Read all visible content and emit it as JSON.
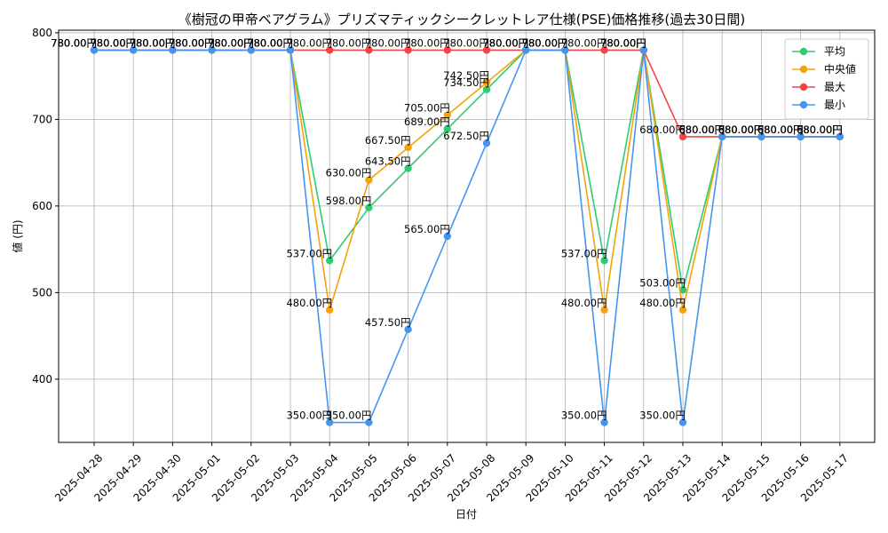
{
  "chart_data": {
    "type": "line",
    "title": "《樹冠の甲帝ベアグラム》プリズマティックシークレットレア仕様(PSE)価格推移(過去30日間)",
    "xlabel": "日付",
    "ylabel": "値 (円)",
    "ylim": [
      327,
      803
    ],
    "yticks": [
      400,
      500,
      600,
      700,
      800
    ],
    "grid": true,
    "legend_position": "top-right",
    "categories": [
      "2025-04-28",
      "2025-04-29",
      "2025-04-30",
      "2025-05-01",
      "2025-05-02",
      "2025-05-03",
      "2025-05-04",
      "2025-05-05",
      "2025-05-06",
      "2025-05-07",
      "2025-05-08",
      "2025-05-09",
      "2025-05-10",
      "2025-05-11",
      "2025-05-12",
      "2025-05-13",
      "2025-05-14",
      "2025-05-15",
      "2025-05-16",
      "2025-05-17"
    ],
    "series": [
      {
        "name": "平均",
        "color": "#2ecc71",
        "values": [
          780,
          780,
          780,
          780,
          780,
          780,
          537,
          598,
          643.5,
          689,
          734.5,
          780,
          780,
          537,
          780,
          503,
          680,
          680,
          680,
          680
        ]
      },
      {
        "name": "中央値",
        "color": "#f5a30a",
        "values": [
          780,
          780,
          780,
          780,
          780,
          780,
          480,
          630,
          667.5,
          705,
          742.5,
          780,
          780,
          480,
          780,
          480,
          680,
          680,
          680,
          680
        ]
      },
      {
        "name": "最大",
        "color": "#f44444",
        "values": [
          780,
          780,
          780,
          780,
          780,
          780,
          780,
          780,
          780,
          780,
          780,
          780,
          780,
          780,
          780,
          680,
          680,
          680,
          680,
          680
        ]
      },
      {
        "name": "最小",
        "color": "#4595f0",
        "values": [
          780,
          780,
          780,
          780,
          780,
          780,
          350,
          350,
          457.5,
          565,
          672.5,
          780,
          780,
          350,
          780,
          350,
          680,
          680,
          680,
          680
        ]
      }
    ],
    "value_suffix": "円"
  }
}
